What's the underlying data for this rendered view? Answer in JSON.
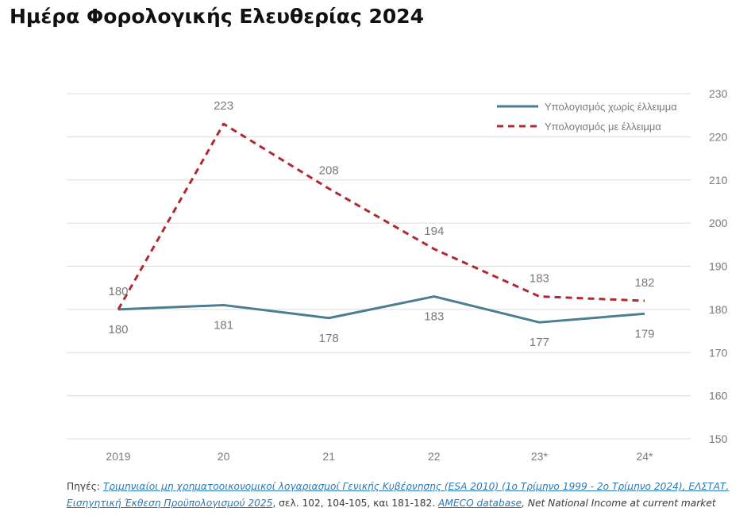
{
  "title": "Ημέρα Φορολογικής Ελευθερίας 2024",
  "chart_data": {
    "type": "line",
    "categories": [
      "2019",
      "20",
      "21",
      "22",
      "23*",
      "24*"
    ],
    "series": [
      {
        "name": "Υπολογισμός χωρίς έλλειμμα",
        "values": [
          180,
          181,
          178,
          183,
          177,
          179
        ],
        "color": "#4a7e90",
        "style": "solid",
        "label_position": "below"
      },
      {
        "name": "Υπολογισμός με έλλειμμα",
        "values": [
          180,
          223,
          208,
          194,
          183,
          182
        ],
        "color": "#b2282e",
        "style": "dashed",
        "label_position": "above"
      }
    ],
    "y_axis_side": "right",
    "yticks": [
      150,
      160,
      170,
      180,
      190,
      200,
      210,
      220,
      230
    ],
    "ylim": [
      150,
      230
    ],
    "grid": true,
    "legend_position": "top-right"
  },
  "sources": {
    "prefix": "Πηγές:",
    "link1": "Τριμηνιαίοι μη χρηματοοικονομικοί λογαριασμοί Γενικής Κυβέρνησης (ESA 2010) (1ο Τρίμηνο 1999 - 2ο Τρίμηνο 2024), ΕΛΣΤΑΤ.",
    "link2": "Εισηγητική Έκθεση Προϋπολογισμού 2025",
    "text2": ", σελ.  102, 104-105, και 181-182.",
    "link3": "AMECO database",
    "text3": ", Net National Income at current market"
  }
}
